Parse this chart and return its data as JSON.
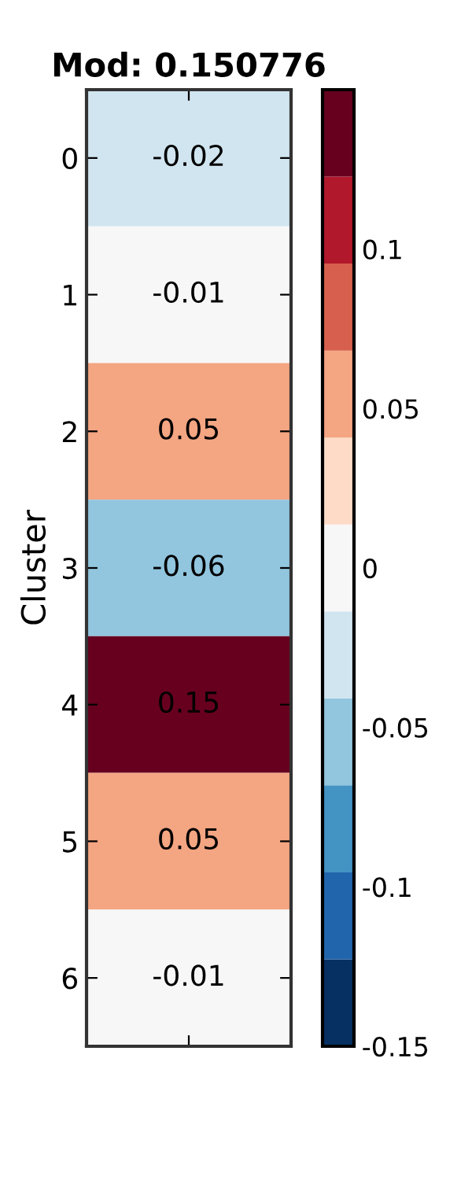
{
  "chart_data": {
    "type": "heatmap",
    "title": "Mod: 0.150776",
    "ylabel": "Cluster",
    "categories": [
      null
    ],
    "y_categories": [
      "0",
      "1",
      "2",
      "3",
      "4",
      "5",
      "6"
    ],
    "cells": [
      [
        -0.02
      ],
      [
        -0.01
      ],
      [
        0.05
      ],
      [
        -0.06
      ],
      [
        0.15
      ],
      [
        0.05
      ],
      [
        -0.01
      ]
    ],
    "cell_labels": [
      [
        "-0.02"
      ],
      [
        "-0.01"
      ],
      [
        "0.05"
      ],
      [
        "-0.06"
      ],
      [
        "0.15"
      ],
      [
        "0.05"
      ],
      [
        "-0.01"
      ]
    ],
    "clim": [
      -0.15,
      0.15
    ],
    "cticks": [
      -0.15,
      -0.1,
      -0.05,
      0,
      0.05,
      0.1
    ]
  }
}
